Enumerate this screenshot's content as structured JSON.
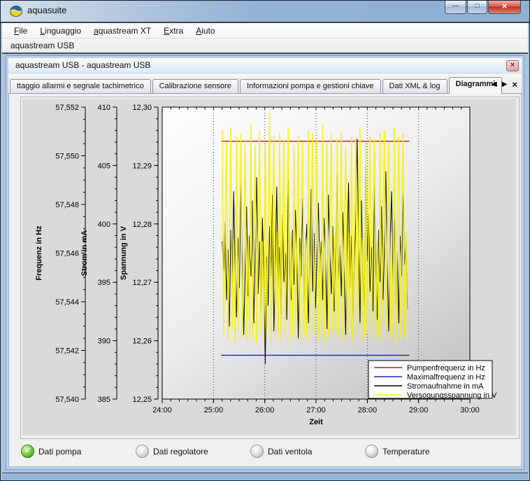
{
  "window": {
    "title": "aquasuite"
  },
  "window_buttons": {
    "minimize": "—",
    "maximize": "□",
    "close": "×"
  },
  "menubar": {
    "items": [
      "File",
      "Linguaggio",
      "aquastream XT",
      "Extra",
      "Aiuto"
    ]
  },
  "mdi_tab": {
    "label": "aquastream USB"
  },
  "child": {
    "title": "aquastream USB - aquastream USB",
    "close_glyph": "×",
    "tabs": [
      {
        "label": "ttaggio allarmi e segnale tachimetrico",
        "active": false
      },
      {
        "label": "Calibrazione sensore",
        "active": false
      },
      {
        "label": "Informazioni pompa e gestioni chiave",
        "active": false
      },
      {
        "label": "Dati XML & log",
        "active": false
      },
      {
        "label": "Diagrammi",
        "active": true
      }
    ],
    "tab_nav": {
      "left": "◀",
      "right": "▶",
      "close": "×"
    }
  },
  "status_items": [
    {
      "label": "Dati pompa",
      "state": "active",
      "check_glyph": "✓"
    },
    {
      "label": "Dati regolatore",
      "state": "inactive",
      "check_glyph": "✓"
    },
    {
      "label": "Dati ventola",
      "state": "inactive",
      "check_glyph": "✓"
    },
    {
      "label": "Temperature",
      "state": "inactive",
      "check_glyph": "✓"
    }
  ],
  "colors": {
    "pumpenfrequenz": "#b42020",
    "maximalfrequenz": "#2323b0",
    "stromaufnahme": "#000000",
    "versorgungsspannung": "#f6f208",
    "status_active": "#41ae20",
    "status_inactive": "#c0c0c0"
  },
  "chart_data": {
    "type": "line",
    "title": "",
    "xlabel": "Zeit",
    "x_range": [
      24,
      30
    ],
    "x_ticks": [
      "24:00",
      "25:00",
      "26:00",
      "27:00",
      "28:00",
      "29:00",
      "30:00"
    ],
    "x_tick_values": [
      24,
      25,
      26,
      27,
      28,
      29,
      30
    ],
    "x_minor_step": 0.16667,
    "gridlines_x": [
      25,
      26,
      27,
      28,
      29
    ],
    "grid_style": "dotted-vertical",
    "legend_position": "bottom-right",
    "axes": [
      {
        "title": "Frequenz in Hz",
        "range": [
          57.54,
          57.552
        ],
        "minor_step": 0.0005,
        "ticks": [
          "57,540",
          "57,542",
          "57,544",
          "57,546",
          "57,548",
          "57,550",
          "57,552"
        ],
        "tick_values": [
          57.54,
          57.542,
          57.544,
          57.546,
          57.548,
          57.55,
          57.552
        ]
      },
      {
        "title": "Strom in mA",
        "range": [
          385,
          410
        ],
        "minor_step": 1,
        "ticks": [
          "385",
          "390",
          "395",
          "400",
          "405",
          "410"
        ],
        "tick_values": [
          385,
          390,
          395,
          400,
          405,
          410
        ]
      },
      {
        "title": "Spannung in V",
        "range": [
          12.25,
          12.3
        ],
        "minor_step": 0.002,
        "ticks": [
          "12,25",
          "12,26",
          "12,27",
          "12,28",
          "12,29",
          "12,30"
        ],
        "tick_values": [
          12.25,
          12.26,
          12.27,
          12.28,
          12.29,
          12.3
        ]
      }
    ],
    "series": [
      {
        "name": "Pumpenfrequenz in Hz",
        "color": "#b42020",
        "axis": 0,
        "kind": "hline",
        "value": 57.5506,
        "x_span": [
          25.15,
          28.82
        ]
      },
      {
        "name": "Maximalfrequenz in Hz",
        "color": "#2323b0",
        "axis": 0,
        "kind": "hline",
        "value": 57.5418,
        "x_span": [
          25.15,
          28.82
        ]
      },
      {
        "name": "Stromaufnahme in mA",
        "color": "#000000",
        "axis": 1,
        "kind": "line",
        "t_start": 25.17,
        "t_step": 0.028,
        "values": [
          398.5,
          396.0,
          400.2,
          393.5,
          397.8,
          391.2,
          399.5,
          395.0,
          402.8,
          396.5,
          392.0,
          398.8,
          394.5,
          403.5,
          397.0,
          390.5,
          396.2,
          401.5,
          393.8,
          399.0,
          395.5,
          402.0,
          391.5,
          397.5,
          404.0,
          394.0,
          398.5,
          392.5,
          400.5,
          396.0,
          388.0,
          397.2,
          393.0,
          399.8,
          395.5,
          402.5,
          390.8,
          396.8,
          403.2,
          394.5,
          398.0,
          392.2,
          400.8,
          395.0,
          397.5,
          391.8,
          403.8,
          396.2,
          393.5,
          399.5,
          394.8,
          401.2,
          397.0,
          390.2,
          398.8,
          395.5,
          402.2,
          393.2,
          397.8,
          400.0,
          391.5,
          396.5,
          403.0,
          394.2,
          399.2,
          392.8,
          397.2,
          401.8,
          395.8,
          398.5,
          393.5,
          400.5,
          396.8,
          391.0,
          402.5,
          397.5,
          394.0,
          399.8,
          392.5,
          396.5,
          404.2,
          395.2,
          398.2,
          393.8,
          401.0,
          396.0,
          390.5,
          397.8,
          403.5,
          394.5,
          399.0,
          392.0,
          396.5,
          400.2,
          407.3,
          398.5,
          391.5,
          402.0,
          395.5,
          393.0,
          405.0,
          396.8,
          400.8,
          394.2,
          398.0,
          392.5,
          403.2,
          397.0,
          391.8,
          399.5,
          395.0,
          401.5,
          393.5,
          397.8,
          404.5,
          396.2,
          390.8,
          398.8,
          402.8,
          394.8,
          400.5,
          393.0,
          397.5,
          391.5,
          399.0,
          395.5,
          402.5,
          396.5,
          398.5,
          392.7
        ]
      },
      {
        "name": "Versogungsspannung in V",
        "color": "#f6f208",
        "axis": 2,
        "kind": "line",
        "t_start": 25.17,
        "t_step": 0.028,
        "values": [
          12.296,
          12.261,
          12.278,
          12.294,
          12.26,
          12.279,
          12.2965,
          12.262,
          12.2775,
          12.2595,
          12.295,
          12.2615,
          12.2785,
          12.2955,
          12.2605,
          12.277,
          12.2945,
          12.26,
          12.278,
          12.261,
          12.297,
          12.2605,
          12.2775,
          12.2935,
          12.2595,
          12.2785,
          12.296,
          12.2615,
          12.277,
          12.26,
          12.294,
          12.262,
          12.279,
          12.2993,
          12.26,
          12.2775,
          12.295,
          12.2605,
          12.2785,
          12.2615,
          12.2955,
          12.26,
          12.278,
          12.2945,
          12.261,
          12.2775,
          12.2965,
          12.2595,
          12.2785,
          12.2605,
          12.2935,
          12.2615,
          12.277,
          12.295,
          12.26,
          12.279,
          12.294,
          12.261,
          12.2775,
          12.26,
          12.296,
          12.2605,
          12.2785,
          12.2955,
          12.2615,
          12.278,
          12.2945,
          12.26,
          12.277,
          12.261,
          12.297,
          12.2595,
          12.2775,
          12.294,
          12.2605,
          12.2785,
          12.2955,
          12.2615,
          12.278,
          12.26,
          12.2945,
          12.261,
          12.279,
          12.296,
          12.26,
          12.2775,
          12.2935,
          12.2605,
          12.2785,
          12.2615,
          12.295,
          12.26,
          12.277,
          12.2945,
          12.261,
          12.278,
          12.2965,
          12.2595,
          12.2775,
          12.2605,
          12.294,
          12.2615,
          12.2785,
          12.295,
          12.26,
          12.279,
          12.2945,
          12.261,
          12.277,
          12.26,
          12.2955,
          12.2605,
          12.2775,
          12.296,
          12.2615,
          12.278,
          12.294,
          12.26,
          12.2785,
          12.261,
          12.2965,
          12.2595,
          12.278,
          12.295,
          12.2605,
          12.2775,
          12.2955,
          12.261,
          12.2785,
          12.26
        ]
      }
    ]
  }
}
